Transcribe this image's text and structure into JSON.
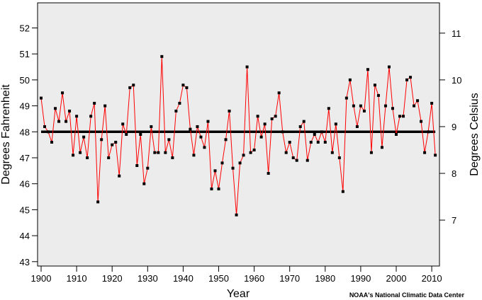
{
  "chart_data": {
    "type": "line",
    "xlabel": "Year",
    "ylabel": "Degrees Fahrenheit",
    "ylabel_right": "Degrees Celsius",
    "credit": "NOAA's National Climatic Data Center",
    "xlim": [
      1899,
      2012.3
    ],
    "ylim": [
      42.87,
      52.95
    ],
    "x_ticks": [
      1900,
      1910,
      1920,
      1930,
      1940,
      1950,
      1960,
      1970,
      1980,
      1990,
      2000,
      2010
    ],
    "y_ticks": [
      43,
      44,
      45,
      46,
      47,
      48,
      49,
      50,
      51,
      52
    ],
    "y_ticks_right_celsius": [
      7,
      8,
      9,
      10,
      11
    ],
    "grid": false,
    "mean_line": 48.0,
    "colors": {
      "series": "#ff0000",
      "markers": "#000000",
      "mean": "#000000",
      "background": "#ececec"
    },
    "series": [
      {
        "x": [
          1900,
          1901,
          1902,
          1903,
          1904,
          1905,
          1906,
          1907,
          1908,
          1909,
          1910,
          1911,
          1912,
          1913,
          1914,
          1915,
          1916,
          1917,
          1918,
          1919,
          1920,
          1921,
          1922,
          1923,
          1924,
          1925,
          1926,
          1927,
          1928,
          1929,
          1930,
          1931,
          1932,
          1933,
          1934,
          1935,
          1936,
          1937,
          1938,
          1939,
          1940,
          1941,
          1942,
          1943,
          1944,
          1945,
          1946,
          1947,
          1948,
          1949,
          1950,
          1951,
          1952,
          1953,
          1954,
          1955,
          1956,
          1957,
          1958,
          1959,
          1960,
          1961,
          1962,
          1963,
          1964,
          1965,
          1966,
          1967,
          1968,
          1969,
          1970,
          1971,
          1972,
          1973,
          1974,
          1975,
          1976,
          1977,
          1978,
          1979,
          1980,
          1981,
          1982,
          1983,
          1984,
          1985,
          1986,
          1987,
          1988,
          1989,
          1990,
          1991,
          1992,
          1993,
          1994,
          1995,
          1996,
          1997,
          1998,
          1999,
          2000,
          2001,
          2002,
          2003,
          2004,
          2005,
          2006,
          2007,
          2008,
          2009,
          2010,
          2011
        ],
        "values": [
          49.3,
          48.2,
          48.0,
          47.6,
          48.9,
          48.4,
          49.5,
          48.4,
          48.8,
          47.1,
          48.6,
          47.2,
          47.8,
          47.0,
          48.6,
          49.1,
          45.3,
          47.7,
          49.0,
          47.0,
          47.5,
          47.6,
          46.3,
          48.3,
          47.9,
          49.7,
          49.8,
          46.7,
          47.9,
          46.0,
          46.6,
          48.2,
          47.2,
          47.2,
          50.9,
          47.2,
          47.7,
          47.0,
          48.8,
          49.1,
          49.8,
          49.7,
          48.1,
          47.1,
          48.2,
          47.8,
          47.4,
          48.4,
          45.8,
          46.5,
          45.8,
          46.8,
          47.7,
          48.8,
          46.6,
          44.8,
          46.8,
          47.1,
          50.5,
          47.2,
          47.3,
          48.6,
          47.8,
          48.3,
          46.4,
          48.5,
          48.6,
          49.5,
          48.0,
          47.2,
          47.6,
          47.0,
          46.9,
          48.2,
          48.4,
          46.9,
          47.6,
          47.9,
          47.6,
          48.0,
          47.6,
          48.9,
          47.2,
          48.3,
          47.0,
          45.7,
          49.3,
          50.0,
          49.0,
          48.2,
          49.0,
          48.8,
          50.4,
          47.2,
          49.8,
          49.4,
          47.4,
          49.0,
          50.5,
          48.9,
          47.9,
          48.6,
          48.6,
          50.0,
          50.1,
          49.0,
          49.2,
          48.4,
          47.2,
          48.0,
          49.1,
          47.1
        ]
      }
    ]
  }
}
